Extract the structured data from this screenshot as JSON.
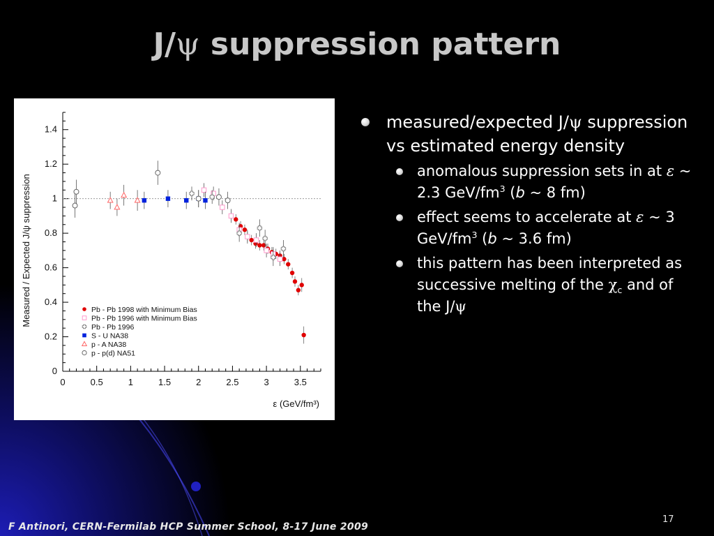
{
  "slide": {
    "title_prefix": "J/",
    "title_psi": "ψ",
    "title_suffix": " suppression pattern",
    "footer": "F Antinori, CERN-Fermilab HCP Summer School, 8-17 June 2009",
    "page_number": "17",
    "bullet_main": {
      "a": "measured/expected J/",
      "psi": "ψ",
      "b": " suppression vs estimated energy density"
    },
    "sub_bullets": [
      {
        "a": "anomalous suppression sets in at ",
        "eps": "ε",
        "b": " ~ 2.3 GeV/fm",
        "sup": "3",
        "c": " (",
        "bvar": "b",
        "d": " ~ 8 fm)"
      },
      {
        "a": "effect seems to accelerate at ",
        "eps": "ε",
        "b": " ~ 3 GeV/fm",
        "sup": "3",
        "c": " (",
        "bvar": "b",
        "d": " ~ 3.6 fm)"
      },
      {
        "a": "this pattern has been interpreted as successive melting of the ",
        "chi": "χ",
        "sub": "c",
        "b": " and of the J/",
        "psi": "ψ"
      }
    ]
  },
  "chart_data": {
    "type": "scatter",
    "ylabel": "Measured / Expected  J/ψ suppression",
    "xlabel": "ε  (GeV/fm³)",
    "xlim": [
      0,
      3.8
    ],
    "ylim": [
      0,
      1.5
    ],
    "x_ticks": [
      "0",
      "0.5",
      "1",
      "1.5",
      "2",
      "2.5",
      "3",
      "3.5"
    ],
    "y_ticks": [
      "0",
      "0.2",
      "0.4",
      "0.6",
      "0.8",
      "1",
      "1.2",
      "1.4"
    ],
    "reference_line": 1,
    "series": [
      {
        "name": "Pb - Pb 1998 with Minimum Bias",
        "color": "#e00000",
        "marker": "filled-circle",
        "points": [
          [
            2.55,
            0.88,
            0.03
          ],
          [
            2.62,
            0.84,
            0.03
          ],
          [
            2.68,
            0.82,
            0.03
          ],
          [
            2.72,
            0.78,
            0.03
          ],
          [
            2.78,
            0.76,
            0.03
          ],
          [
            2.84,
            0.74,
            0.03
          ],
          [
            2.9,
            0.73,
            0.03
          ],
          [
            2.96,
            0.73,
            0.03
          ],
          [
            3.02,
            0.71,
            0.03
          ],
          [
            3.08,
            0.69,
            0.03
          ],
          [
            3.14,
            0.68,
            0.03
          ],
          [
            3.2,
            0.67,
            0.03
          ],
          [
            3.26,
            0.65,
            0.03
          ],
          [
            3.32,
            0.62,
            0.03
          ],
          [
            3.38,
            0.57,
            0.03
          ],
          [
            3.42,
            0.52,
            0.03
          ],
          [
            3.47,
            0.47,
            0.03
          ],
          [
            3.52,
            0.5,
            0.04
          ],
          [
            3.55,
            0.21,
            0.05
          ]
        ]
      },
      {
        "name": "Pb - Pb 1996 with Minimum Bias",
        "color": "#ff99cc",
        "marker": "open-square",
        "points": [
          [
            2.08,
            1.05,
            0.04
          ],
          [
            2.22,
            1.03,
            0.04
          ],
          [
            2.35,
            0.95,
            0.04
          ],
          [
            2.48,
            0.9,
            0.04
          ],
          [
            2.6,
            0.82,
            0.04
          ],
          [
            2.72,
            0.78,
            0.04
          ],
          [
            2.85,
            0.76,
            0.04
          ],
          [
            3.0,
            0.7,
            0.04
          ],
          [
            3.1,
            0.68,
            0.04
          ],
          [
            3.2,
            0.65,
            0.04
          ]
        ]
      },
      {
        "name": "Pb - Pb 1996",
        "color": "#888888",
        "marker": "open-cross",
        "points": [
          [
            1.9,
            1.03,
            0.04
          ],
          [
            2.2,
            1.01,
            0.04
          ],
          [
            2.6,
            0.8,
            0.05
          ],
          [
            2.9,
            0.83,
            0.05
          ],
          [
            2.98,
            0.77,
            0.05
          ],
          [
            3.1,
            0.66,
            0.05
          ],
          [
            3.25,
            0.71,
            0.05
          ]
        ]
      },
      {
        "name": "S - U    NA38",
        "color": "#0022dd",
        "marker": "filled-square",
        "points": [
          [
            1.2,
            0.99,
            0.05
          ],
          [
            1.55,
            1.0,
            0.05
          ],
          [
            1.82,
            0.99,
            0.05
          ],
          [
            2.0,
            1.0,
            0.05
          ],
          [
            2.1,
            0.99,
            0.05
          ]
        ]
      },
      {
        "name": "p - A     NA38",
        "color": "#ff6666",
        "marker": "open-triangle",
        "points": [
          [
            0.7,
            0.99,
            0.05
          ],
          [
            0.8,
            0.95,
            0.05
          ],
          [
            0.9,
            1.02,
            0.06
          ],
          [
            1.1,
            0.99,
            0.06
          ]
        ]
      },
      {
        "name": "p - p(d)  NA51",
        "color": "#666666",
        "marker": "open-circle",
        "points": [
          [
            0.18,
            0.96,
            0.07
          ],
          [
            0.2,
            1.04,
            0.07
          ],
          [
            1.4,
            1.15,
            0.07
          ],
          [
            2.0,
            1.0,
            0.05
          ],
          [
            2.3,
            1.01,
            0.05
          ],
          [
            2.43,
            0.99,
            0.05
          ]
        ]
      }
    ]
  }
}
